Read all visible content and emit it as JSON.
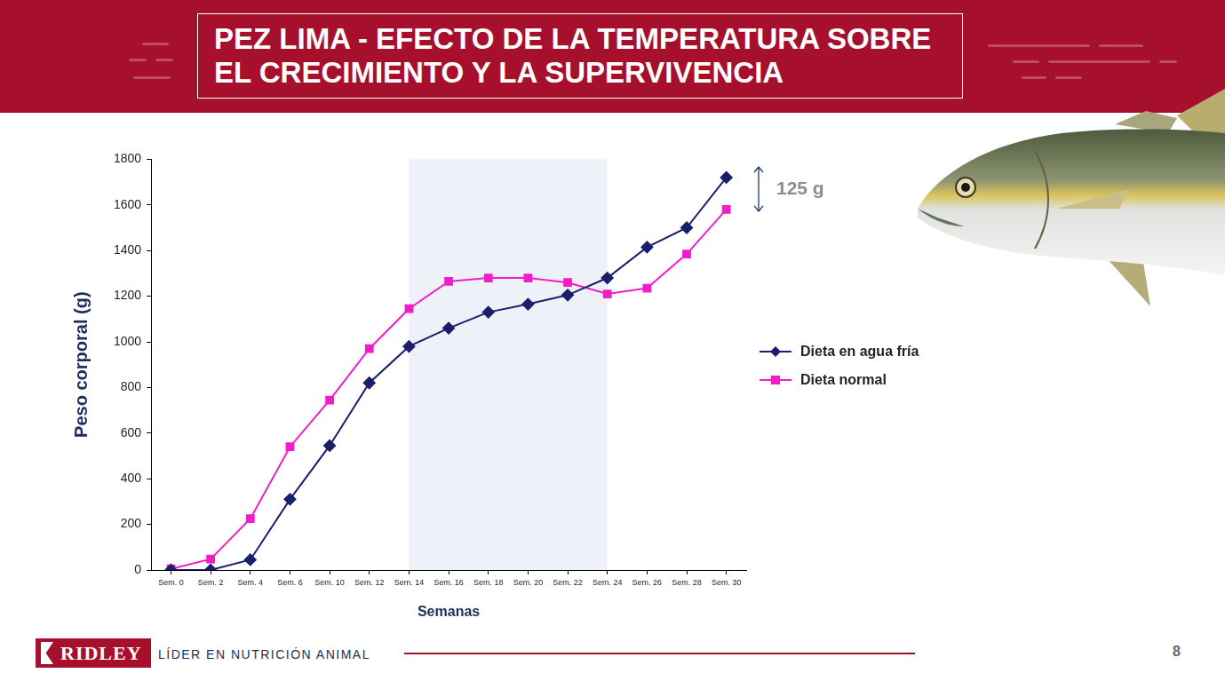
{
  "chart_data": {
    "type": "line",
    "title": "PEZ LIMA - EFECTO DE LA TEMPERATURA SOBRE EL CRECIMIENTO Y LA SUPERVIVENCIA",
    "x_label": "Semanas",
    "y_label": "Peso corporal (g)",
    "categories": [
      "Sem. 0",
      "Sem. 2",
      "Sem. 4",
      "Sem. 6",
      "Sem. 10",
      "Sem. 12",
      "Sem. 14",
      "Sem. 16",
      "Sem. 18",
      "Sem. 20",
      "Sem. 22",
      "Sem. 24",
      "Sem. 26",
      "Sem. 28",
      "Sem. 30"
    ],
    "series": [
      {
        "name": "Dieta en agua fría",
        "color": "#1b1f6b",
        "marker": "diamond",
        "values": [
          0,
          0,
          45,
          310,
          545,
          820,
          980,
          1060,
          1130,
          1165,
          1205,
          1280,
          1415,
          1500,
          1720
        ]
      },
      {
        "name": "Dieta normal",
        "color": "#f21cc9",
        "marker": "square",
        "values": [
          5,
          48,
          225,
          540,
          745,
          970,
          1145,
          1265,
          1280,
          1280,
          1260,
          1210,
          1235,
          1385,
          1580
        ]
      }
    ],
    "ylim": [
      0,
      1800
    ],
    "yticks": [
      0,
      200,
      400,
      600,
      800,
      1000,
      1200,
      1400,
      1600,
      1800
    ],
    "grid": false,
    "legend": "right",
    "shaded_range": [
      "Sem. 14",
      "Sem. 24"
    ],
    "annotations": [
      {
        "text": "125 g"
      }
    ]
  },
  "footer": {
    "logo": "RIDLEY",
    "tagline": "LÍDER EN NUTRICIÓN ANIMAL",
    "page": "8"
  }
}
